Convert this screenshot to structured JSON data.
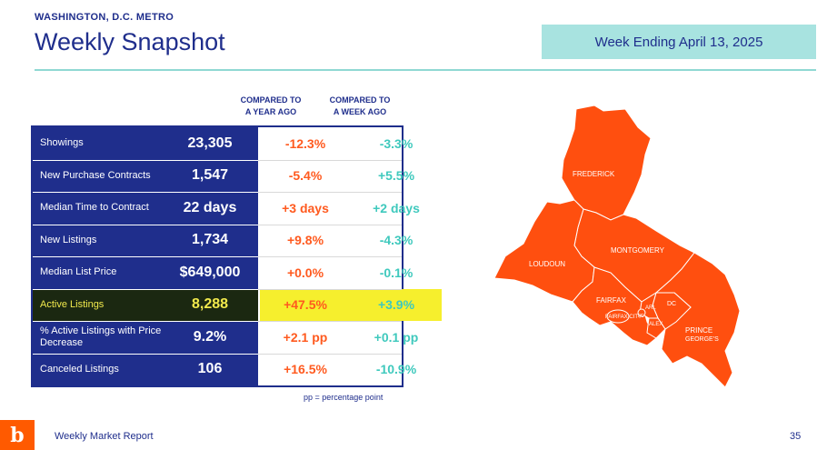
{
  "header": {
    "region": "WASHINGTON, D.C. METRO",
    "title": "Weekly Snapshot",
    "week": "Week Ending April 13, 2025"
  },
  "columns": {
    "yoy_line1": "COMPARED TO",
    "yoy_line2": "A YEAR AGO",
    "wow_line1": "COMPARED TO",
    "wow_line2": "A WEEK AGO"
  },
  "rows": [
    {
      "label": "Showings",
      "value": "23,305",
      "yoy": "-12.3%",
      "wow": "-3.3%"
    },
    {
      "label": "New Purchase Contracts",
      "value": "1,547",
      "yoy": "-5.4%",
      "wow": "+5.5%"
    },
    {
      "label": "Median Time to Contract",
      "value": "22 days",
      "yoy": "+3 days",
      "wow": "+2 days"
    },
    {
      "label": "New Listings",
      "value": "1,734",
      "yoy": "+9.8%",
      "wow": "-4.3%"
    },
    {
      "label": "Median List Price",
      "value": "$649,000",
      "yoy": "+0.0%",
      "wow": "-0.1%"
    },
    {
      "label": "Active Listings",
      "value": "8,288",
      "yoy": "+47.5%",
      "wow": "+3.9%"
    },
    {
      "label": "% Active Listings with Price Decrease",
      "value": "9.2%",
      "yoy": "+2.1 pp",
      "wow": "+0.1 pp"
    },
    {
      "label": "Canceled Listings",
      "value": "106",
      "yoy": "+16.5%",
      "wow": "-10.9%"
    }
  ],
  "note": "pp = percentage point",
  "map": {
    "labels": {
      "frederick": "FREDERICK",
      "montgomery": "MONTGOMERY",
      "loudoun": "LOUDOUN",
      "fairfax": "FAIRFAX",
      "fairfax_city": "FAIRFAX CITY",
      "fc": "FC",
      "arl": "ARL",
      "alex": "ALEX",
      "dc": "DC",
      "pg1": "PRINCE",
      "pg2": "GEORGE'S"
    },
    "fill_color": "#ff4f0f"
  },
  "colors": {
    "navy": "#1f2e8c",
    "orange": "#ff5a1f",
    "teal": "#3fc9bd",
    "highlight": "#f6ef2d",
    "map_orange": "#ff4f0f"
  },
  "footer": {
    "logo": "b",
    "text": "Weekly Market Report",
    "page": "35"
  }
}
